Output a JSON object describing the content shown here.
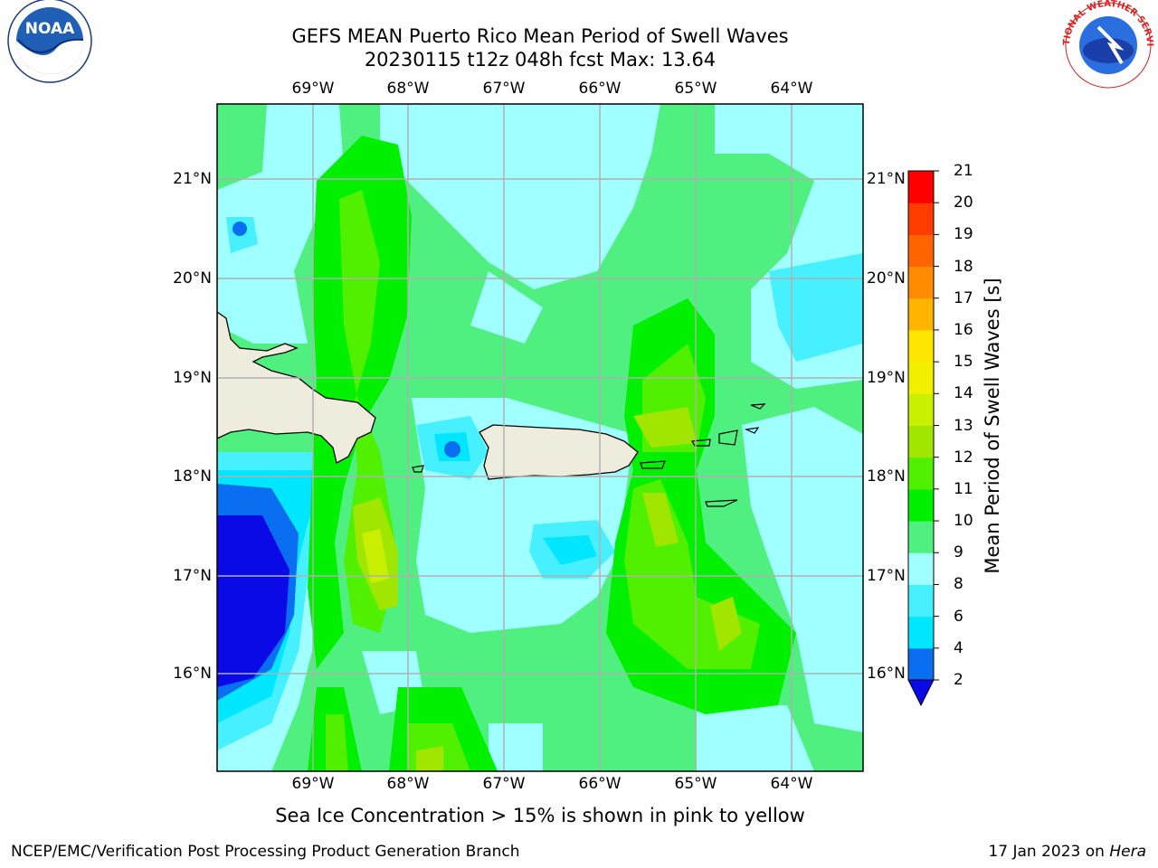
{
  "header": {
    "title_line1": "GEFS MEAN Puerto Rico Mean Period of Swell Waves",
    "title_line2": "20230115 t12z 048h fcst   Max: 13.64"
  },
  "map": {
    "longitude_labels": [
      "69°W",
      "68°W",
      "67°W",
      "66°W",
      "65°W",
      "64°W"
    ],
    "latitude_labels": [
      "21°N",
      "20°N",
      "19°N",
      "18°N",
      "17°N",
      "16°N"
    ],
    "land_color": "#eeecdc",
    "grid_color": "#b0b0b0"
  },
  "colorbar": {
    "label": "Mean Period of Swell Waves [s]",
    "ticks": [
      "2",
      "4",
      "6",
      "8",
      "9",
      "10",
      "11",
      "12",
      "13",
      "14",
      "15",
      "16",
      "17",
      "18",
      "19",
      "20",
      "21"
    ],
    "colors": [
      "#0a0ae6",
      "#0a6ef0",
      "#00e6ff",
      "#46f0ff",
      "#a0ffff",
      "#50f080",
      "#00f000",
      "#50f000",
      "#a0e600",
      "#c8f000",
      "#f0f000",
      "#ffe600",
      "#ffb400",
      "#ff8c00",
      "#ff6400",
      "#ff3c00",
      "#ff0000"
    ]
  },
  "footer": {
    "sea_ice_note": "Sea Ice Concentration > 15% is shown in pink to yellow",
    "credit": "NCEP/EMC/Verification Post Processing Product Generation Branch",
    "date_prefix": "17 Jan 2023 on",
    "machine": "Hera"
  },
  "logos": {
    "noaa_text": "NOAA",
    "nws_text": "NATIONAL WEATHER SERVICE"
  }
}
